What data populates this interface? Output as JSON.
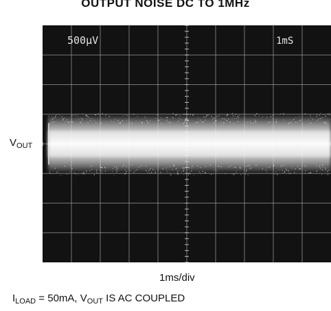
{
  "chart_data": {
    "type": "line",
    "title": "OUTPUT NOISE DC TO 1MHz",
    "ylabel_main": "V",
    "ylabel_sub": "OUT",
    "xlabel": "1ms/div",
    "volts_per_div": "500µV",
    "time_per_div": "1mS",
    "divisions": {
      "x": 10,
      "y": 8
    },
    "grid": true,
    "series": [
      {
        "values": [
          0
        ]
      }
    ],
    "noise_band_peak_to_peak_div": 2.0
  },
  "footnote": {
    "i_main": "I",
    "i_sub": "LOAD",
    "mid": " = 50mA, V",
    "v_sub": "OUT",
    "tail": " IS AC COUPLED"
  }
}
